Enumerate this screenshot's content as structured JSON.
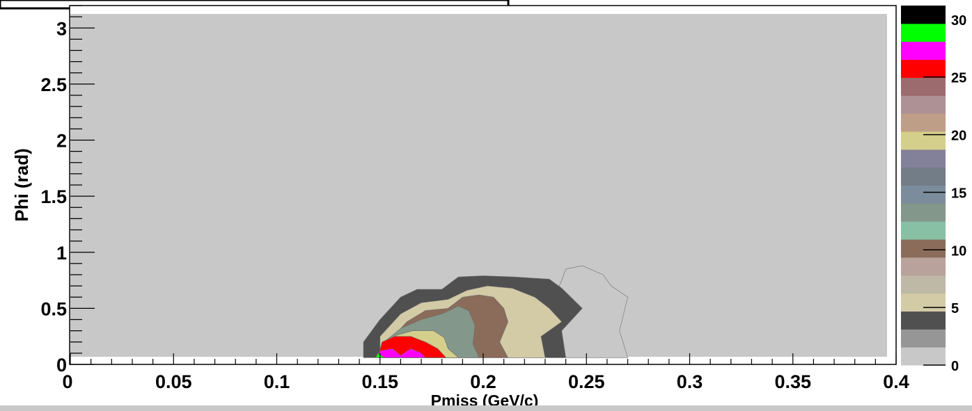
{
  "chart_data": {
    "type": "heatmap",
    "title": "",
    "xlabel": "Pmiss (GeV/c)",
    "ylabel": "Phi (rad)",
    "xlim": [
      0,
      0.4
    ],
    "ylim": [
      0,
      3.2
    ],
    "x_ticks": [
      "0",
      "0.05",
      "0.1",
      "0.15",
      "0.2",
      "0.25",
      "0.3",
      "0.35",
      "0.4"
    ],
    "y_ticks": [
      "0",
      "0.5",
      "1",
      "1.5",
      "2",
      "2.5",
      "3"
    ],
    "z_ticks": [
      "0",
      "5",
      "10",
      "15",
      "20",
      "25",
      "30"
    ],
    "zlim": [
      0,
      31.2
    ],
    "contour_colors": [
      "#c8c8c8",
      "#969696",
      "#505050",
      "#d2cba6",
      "#bdb9a6",
      "#b9a29b",
      "#8b6b5a",
      "#87c0a4",
      "#83978a",
      "#7b8d9c",
      "#727d88",
      "#838199",
      "#d4cf8b",
      "#bf9e87",
      "#ae9195",
      "#9c6b6e",
      "#ff0000",
      "#ff00ff",
      "#00ff00",
      "#000000"
    ],
    "contour_levels": [
      {
        "level": 1,
        "points": [
          [
            0.232,
            0.06
          ],
          [
            0.232,
            0.5
          ],
          [
            0.238,
            0.75
          ],
          [
            0.24,
            0.85
          ],
          [
            0.248,
            0.88
          ],
          [
            0.258,
            0.8
          ],
          [
            0.262,
            0.7
          ],
          [
            0.27,
            0.6
          ],
          [
            0.266,
            0.3
          ],
          [
            0.27,
            0.06
          ]
        ]
      },
      {
        "level": 4,
        "points": [
          [
            0.142,
            0.06
          ],
          [
            0.142,
            0.2
          ],
          [
            0.15,
            0.4
          ],
          [
            0.16,
            0.6
          ],
          [
            0.168,
            0.67
          ],
          [
            0.18,
            0.67
          ],
          [
            0.188,
            0.78
          ],
          [
            0.2,
            0.79
          ],
          [
            0.215,
            0.78
          ],
          [
            0.232,
            0.76
          ],
          [
            0.238,
            0.68
          ],
          [
            0.248,
            0.5
          ],
          [
            0.238,
            0.3
          ],
          [
            0.24,
            0.06
          ]
        ]
      },
      {
        "level": 6,
        "points": [
          [
            0.15,
            0.06
          ],
          [
            0.15,
            0.25
          ],
          [
            0.16,
            0.45
          ],
          [
            0.17,
            0.55
          ],
          [
            0.183,
            0.58
          ],
          [
            0.192,
            0.66
          ],
          [
            0.202,
            0.7
          ],
          [
            0.214,
            0.68
          ],
          [
            0.225,
            0.6
          ],
          [
            0.232,
            0.5
          ],
          [
            0.238,
            0.38
          ],
          [
            0.228,
            0.25
          ],
          [
            0.23,
            0.06
          ]
        ]
      },
      {
        "level": 10,
        "points": [
          [
            0.153,
            0.06
          ],
          [
            0.155,
            0.22
          ],
          [
            0.163,
            0.38
          ],
          [
            0.172,
            0.48
          ],
          [
            0.183,
            0.5
          ],
          [
            0.19,
            0.6
          ],
          [
            0.198,
            0.62
          ],
          [
            0.205,
            0.6
          ],
          [
            0.21,
            0.5
          ],
          [
            0.212,
            0.38
          ],
          [
            0.208,
            0.2
          ],
          [
            0.212,
            0.06
          ]
        ]
      },
      {
        "level": 13,
        "points": [
          [
            0.15,
            0.06
          ],
          [
            0.152,
            0.2
          ],
          [
            0.16,
            0.32
          ],
          [
            0.17,
            0.4
          ],
          [
            0.18,
            0.45
          ],
          [
            0.188,
            0.52
          ],
          [
            0.193,
            0.48
          ],
          [
            0.196,
            0.35
          ],
          [
            0.195,
            0.18
          ],
          [
            0.198,
            0.06
          ]
        ]
      },
      {
        "level": 20,
        "points": [
          [
            0.15,
            0.06
          ],
          [
            0.153,
            0.18
          ],
          [
            0.158,
            0.26
          ],
          [
            0.166,
            0.3
          ],
          [
            0.176,
            0.3
          ],
          [
            0.181,
            0.24
          ],
          [
            0.183,
            0.14
          ],
          [
            0.188,
            0.06
          ]
        ]
      },
      {
        "level": 25,
        "points": [
          [
            0.149,
            0.06
          ],
          [
            0.151,
            0.2
          ],
          [
            0.157,
            0.25
          ],
          [
            0.165,
            0.25
          ],
          [
            0.172,
            0.2
          ],
          [
            0.178,
            0.14
          ],
          [
            0.182,
            0.06
          ]
        ]
      },
      {
        "level": 27,
        "points": [
          [
            0.149,
            0.06
          ],
          [
            0.15,
            0.12
          ],
          [
            0.156,
            0.14
          ],
          [
            0.16,
            0.08
          ],
          [
            0.165,
            0.14
          ],
          [
            0.17,
            0.1
          ],
          [
            0.172,
            0.06
          ]
        ]
      },
      {
        "level": 29,
        "points": [
          [
            0.148,
            0.06
          ],
          [
            0.149,
            0.1
          ],
          [
            0.152,
            0.06
          ]
        ]
      }
    ]
  }
}
